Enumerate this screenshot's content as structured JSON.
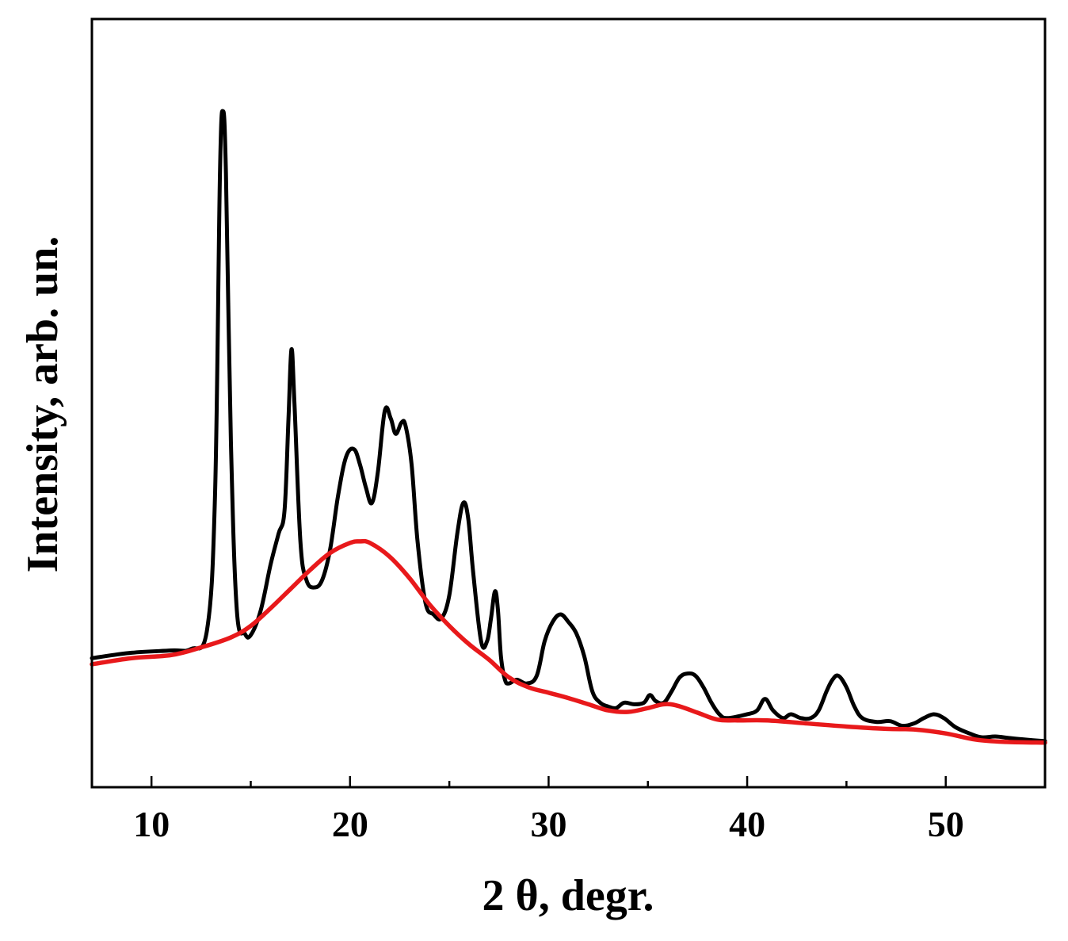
{
  "chart_data": {
    "type": "line",
    "title": "",
    "xlabel": "2 θ, degr.",
    "ylabel": "Intensity, arb. un.",
    "xlim": [
      7,
      55
    ],
    "ylim": [
      0,
      1
    ],
    "x_ticks": [
      10,
      20,
      30,
      40,
      50
    ],
    "x_tick_labels": [
      "10",
      "20",
      "30",
      "40",
      "50"
    ],
    "x_minor_ticks": [
      15,
      25,
      35,
      45
    ],
    "y_tick_labels": [],
    "grid": false,
    "legend": "none",
    "series": [
      {
        "color": "#000000",
        "x": [
          7.0,
          9.0,
          11.0,
          12.0,
          12.8,
          13.2,
          13.45,
          13.6,
          13.75,
          14.0,
          14.3,
          14.7,
          15.0,
          15.5,
          16.0,
          16.4,
          16.7,
          16.9,
          17.05,
          17.2,
          17.5,
          17.8,
          18.2,
          18.6,
          19.0,
          19.4,
          19.8,
          20.2,
          20.5,
          20.8,
          21.1,
          21.4,
          21.75,
          22.05,
          22.3,
          22.6,
          22.8,
          23.1,
          23.4,
          23.8,
          24.2,
          24.6,
          25.0,
          25.4,
          25.7,
          25.95,
          26.2,
          26.6,
          26.9,
          27.1,
          27.3,
          27.45,
          27.6,
          27.8,
          28.0,
          28.4,
          28.9,
          29.4,
          29.8,
          30.2,
          30.6,
          31.0,
          31.4,
          31.8,
          32.2,
          32.6,
          33.0,
          33.4,
          33.8,
          34.3,
          34.8,
          35.1,
          35.4,
          35.8,
          36.2,
          36.6,
          37.0,
          37.4,
          37.8,
          38.2,
          38.6,
          39.0,
          40.0,
          40.5,
          40.9,
          41.3,
          41.8,
          42.2,
          42.7,
          43.2,
          43.6,
          44.0,
          44.3,
          44.6,
          45.0,
          45.4,
          45.8,
          46.5,
          47.2,
          47.8,
          48.4,
          48.9,
          49.4,
          49.9,
          50.5,
          51.2,
          51.8,
          52.5,
          53.2,
          54.0,
          55.0
        ],
        "y": [
          0.168,
          0.175,
          0.178,
          0.18,
          0.205,
          0.38,
          0.8,
          0.88,
          0.8,
          0.45,
          0.23,
          0.2,
          0.198,
          0.23,
          0.29,
          0.33,
          0.36,
          0.48,
          0.57,
          0.5,
          0.32,
          0.27,
          0.26,
          0.27,
          0.31,
          0.38,
          0.43,
          0.44,
          0.42,
          0.39,
          0.37,
          0.41,
          0.49,
          0.48,
          0.46,
          0.475,
          0.47,
          0.42,
          0.32,
          0.24,
          0.225,
          0.22,
          0.25,
          0.33,
          0.37,
          0.35,
          0.28,
          0.19,
          0.19,
          0.22,
          0.255,
          0.23,
          0.17,
          0.14,
          0.135,
          0.14,
          0.135,
          0.145,
          0.19,
          0.215,
          0.225,
          0.215,
          0.2,
          0.17,
          0.125,
          0.11,
          0.105,
          0.103,
          0.11,
          0.108,
          0.11,
          0.12,
          0.112,
          0.11,
          0.125,
          0.143,
          0.148,
          0.145,
          0.13,
          0.11,
          0.095,
          0.09,
          0.095,
          0.1,
          0.115,
          0.1,
          0.09,
          0.095,
          0.09,
          0.09,
          0.1,
          0.125,
          0.14,
          0.145,
          0.13,
          0.105,
          0.09,
          0.085,
          0.086,
          0.08,
          0.083,
          0.09,
          0.095,
          0.09,
          0.078,
          0.07,
          0.065,
          0.066,
          0.064,
          0.062,
          0.06
        ]
      },
      {
        "color": "#e8191b",
        "x": [
          7.0,
          9.0,
          11.0,
          12.5,
          14.0,
          15.0,
          16.0,
          17.0,
          18.0,
          19.0,
          20.0,
          20.5,
          21.0,
          22.0,
          23.0,
          24.0,
          25.0,
          26.0,
          27.0,
          28.0,
          29.0,
          30.0,
          31.0,
          32.0,
          33.0,
          34.0,
          35.0,
          35.8,
          36.5,
          37.5,
          38.5,
          39.5,
          41.0,
          43.0,
          45.0,
          47.0,
          48.5,
          50.0,
          51.5,
          53.0,
          55.0
        ],
        "y": [
          0.16,
          0.168,
          0.172,
          0.182,
          0.195,
          0.21,
          0.233,
          0.258,
          0.283,
          0.305,
          0.318,
          0.32,
          0.318,
          0.3,
          0.272,
          0.238,
          0.21,
          0.186,
          0.166,
          0.143,
          0.13,
          0.123,
          0.116,
          0.108,
          0.1,
          0.098,
          0.103,
          0.108,
          0.106,
          0.097,
          0.088,
          0.087,
          0.087,
          0.083,
          0.079,
          0.076,
          0.075,
          0.07,
          0.062,
          0.059,
          0.058
        ]
      }
    ]
  }
}
